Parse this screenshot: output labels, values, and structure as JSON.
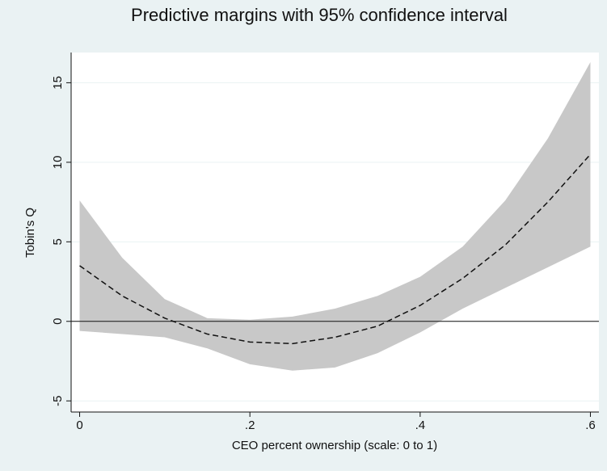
{
  "chart_data": {
    "type": "line_band",
    "title": "Predictive margins with 95% confidence interval",
    "xlabel": "CEO percent ownership (scale: 0 to 1)",
    "ylabel": "Tobin's Q",
    "x": [
      0,
      0.05,
      0.1,
      0.15,
      0.2,
      0.25,
      0.3,
      0.35,
      0.4,
      0.45,
      0.5,
      0.55,
      0.6
    ],
    "values": [
      3.5,
      1.6,
      0.2,
      -0.8,
      -1.3,
      -1.4,
      -1.0,
      -0.3,
      1.0,
      2.7,
      4.8,
      7.5,
      10.5
    ],
    "upper": [
      7.6,
      4.0,
      1.4,
      0.2,
      0.1,
      0.3,
      0.8,
      1.6,
      2.8,
      4.7,
      7.6,
      11.5,
      16.3
    ],
    "lower": [
      -0.6,
      -0.8,
      -1.0,
      -1.7,
      -2.7,
      -3.1,
      -2.9,
      -2.0,
      -0.7,
      0.8,
      2.1,
      3.4,
      4.7
    ],
    "line_color": "#111111",
    "band_color": "#c8c8c8",
    "xlim": [
      -0.01,
      0.61
    ],
    "ylim": [
      -5.7,
      16.9
    ],
    "xticks": [
      0,
      {
        "value": 0.2,
        "label": ".2"
      },
      {
        "value": 0.4,
        "label": ".4"
      },
      {
        "value": 0.6,
        "label": ".6"
      }
    ],
    "yticks": [
      -5,
      0,
      5,
      10,
      15
    ],
    "reference_line": 0,
    "grid": true
  }
}
